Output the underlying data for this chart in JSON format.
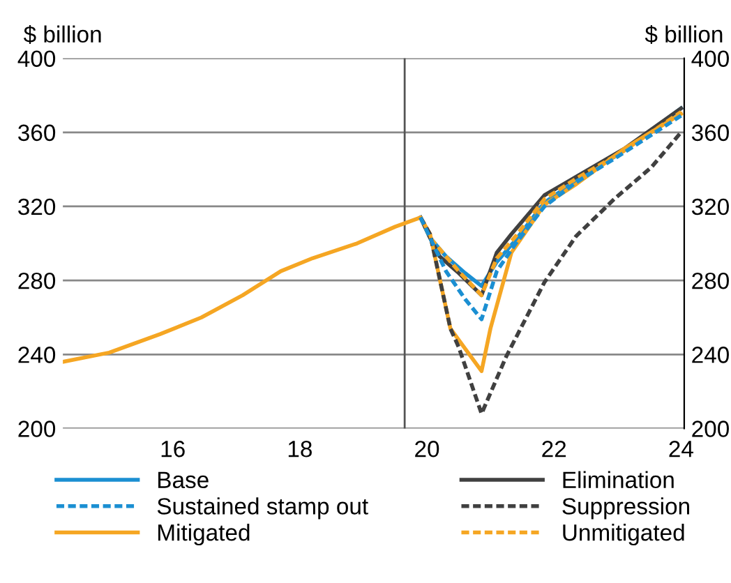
{
  "chart_data": {
    "type": "line",
    "ylabel": "$ billion",
    "y2label": "$ billion",
    "xlim": [
      14.27,
      24.05
    ],
    "xticks": [
      16,
      18,
      20,
      22,
      24
    ],
    "ylim": [
      200,
      400
    ],
    "yticks": [
      200,
      240,
      280,
      320,
      360,
      400
    ],
    "y2lim": [
      200,
      400
    ],
    "y2ticks": [
      200,
      240,
      280,
      320,
      360,
      400
    ],
    "grid": "y",
    "legend": "bottom",
    "marker": "none",
    "ref_lines": [
      {
        "axis": "x",
        "value": 19.65,
        "color": "#555555",
        "line_style": "solid"
      }
    ],
    "series": [
      {
        "name": "Base",
        "color": "#1b8fd2",
        "line_style": "solid",
        "x": [
          19.9,
          20.05,
          20.3,
          20.6,
          20.86,
          21.1,
          21.4,
          21.85,
          22.35,
          23.1,
          24.0
        ],
        "values": [
          314,
          303,
          293,
          284,
          277,
          290,
          302,
          322,
          334,
          350,
          373
        ]
      },
      {
        "name": "Elimination",
        "color": "#404040",
        "line_style": "solid",
        "x": [
          19.9,
          20.05,
          20.2,
          20.5,
          20.86,
          21.1,
          21.33,
          21.85,
          22.35,
          23.1,
          24.0
        ],
        "values": [
          314,
          303,
          293,
          284,
          272,
          295,
          305,
          326,
          336,
          351,
          373
        ]
      },
      {
        "name": "Sustained stamp out",
        "color": "#1b8fd2",
        "line_style": "dashed",
        "x": [
          19.9,
          20.05,
          20.3,
          20.6,
          20.86,
          21.1,
          21.4,
          21.85,
          22.35,
          23.1,
          24.0
        ],
        "values": [
          314,
          303,
          285,
          270,
          259,
          285,
          300,
          320,
          333,
          349,
          369
        ]
      },
      {
        "name": "Suppression",
        "color": "#404040",
        "line_style": "dashed",
        "x": [
          19.9,
          20.05,
          20.37,
          20.5,
          20.86,
          21.25,
          21.85,
          22.35,
          22.95,
          23.53,
          24.0
        ],
        "values": [
          314,
          305,
          254,
          244,
          208,
          239,
          279,
          304,
          324,
          341,
          360
        ]
      },
      {
        "name": "Mitigated",
        "color": "#f5a623",
        "line_style": "solid",
        "x": [
          14.27,
          15.0,
          15.8,
          16.45,
          17.1,
          17.7,
          18.2,
          18.9,
          19.5,
          19.9,
          20.05,
          20.37,
          20.86,
          21.0,
          21.33,
          21.85,
          22.35,
          23.1,
          24.0
        ],
        "values": [
          236,
          241,
          251,
          260,
          272,
          285,
          292,
          300,
          309,
          314,
          305,
          254,
          231,
          254,
          295,
          321,
          332,
          351,
          370
        ]
      },
      {
        "name": "Unmitigated",
        "color": "#f5a623",
        "line_style": "dashed",
        "x": [
          19.9,
          20.05,
          20.5,
          20.86,
          21.1,
          21.4,
          21.85,
          22.35,
          23.1,
          24.0
        ],
        "values": [
          314,
          303,
          285,
          272,
          292,
          304,
          324,
          335,
          350,
          371
        ]
      }
    ]
  }
}
